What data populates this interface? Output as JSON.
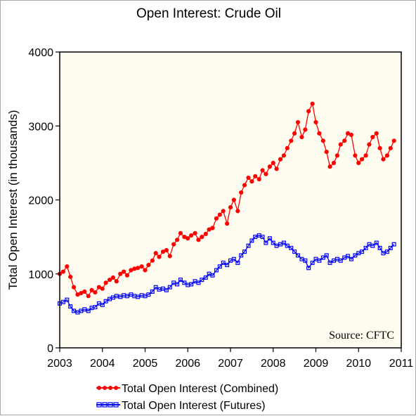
{
  "chart_data": {
    "type": "line",
    "title": "Open Interest: Crude Oil",
    "xlabel": "",
    "ylabel": "Total Open Interest (in thousands)",
    "xlim": [
      2003,
      2011
    ],
    "ylim": [
      0,
      4000
    ],
    "xticks": [
      2003,
      2004,
      2005,
      2006,
      2007,
      2008,
      2009,
      2010,
      2011
    ],
    "yticks": [
      0,
      1000,
      2000,
      3000,
      4000
    ],
    "grid": false,
    "legend_position": "bottom",
    "annotation": "Source: CFTC",
    "background_color": "#fffdf0",
    "series": [
      {
        "name": "Total Open Interest (Combined)",
        "color": "#ff0000",
        "marker": "filled-circle",
        "x": [
          2003.0,
          2003.08,
          2003.17,
          2003.25,
          2003.33,
          2003.42,
          2003.5,
          2003.58,
          2003.67,
          2003.75,
          2003.83,
          2003.92,
          2004.0,
          2004.08,
          2004.17,
          2004.25,
          2004.33,
          2004.42,
          2004.5,
          2004.58,
          2004.67,
          2004.75,
          2004.83,
          2004.92,
          2005.0,
          2005.08,
          2005.17,
          2005.25,
          2005.33,
          2005.42,
          2005.5,
          2005.58,
          2005.67,
          2005.75,
          2005.83,
          2005.92,
          2006.0,
          2006.08,
          2006.17,
          2006.25,
          2006.33,
          2006.42,
          2006.5,
          2006.58,
          2006.67,
          2006.75,
          2006.83,
          2006.92,
          2007.0,
          2007.08,
          2007.17,
          2007.25,
          2007.33,
          2007.42,
          2007.5,
          2007.58,
          2007.67,
          2007.75,
          2007.83,
          2007.92,
          2008.0,
          2008.08,
          2008.17,
          2008.25,
          2008.33,
          2008.42,
          2008.5,
          2008.58,
          2008.67,
          2008.75,
          2008.83,
          2008.92,
          2009.0,
          2009.08,
          2009.17,
          2009.25,
          2009.33,
          2009.42,
          2009.5,
          2009.58,
          2009.67,
          2009.75,
          2009.83,
          2009.92,
          2010.0,
          2010.08,
          2010.17,
          2010.25,
          2010.33,
          2010.42,
          2010.5,
          2010.58,
          2010.67,
          2010.75,
          2010.83
        ],
        "y": [
          1000,
          1030,
          1100,
          960,
          820,
          720,
          740,
          760,
          700,
          780,
          750,
          820,
          800,
          880,
          920,
          950,
          900,
          1000,
          1030,
          980,
          1050,
          1070,
          1080,
          1100,
          1050,
          1120,
          1180,
          1280,
          1230,
          1300,
          1320,
          1240,
          1400,
          1460,
          1550,
          1500,
          1480,
          1520,
          1550,
          1460,
          1500,
          1540,
          1600,
          1620,
          1750,
          1800,
          1850,
          1680,
          1900,
          2000,
          1850,
          2100,
          2200,
          2300,
          2250,
          2320,
          2280,
          2400,
          2350,
          2450,
          2500,
          2420,
          2550,
          2600,
          2700,
          2800,
          2900,
          3050,
          2850,
          2950,
          3200,
          3300,
          3050,
          2900,
          2800,
          2650,
          2450,
          2500,
          2600,
          2750,
          2800,
          2900,
          2880,
          2600,
          2500,
          2550,
          2600,
          2750,
          2850,
          2900,
          2700,
          2550,
          2600,
          2700,
          2800
        ]
      },
      {
        "name": "Total Open Interest (Futures)",
        "color": "#0000ff",
        "marker": "open-square",
        "x": [
          2003.0,
          2003.08,
          2003.17,
          2003.25,
          2003.33,
          2003.42,
          2003.5,
          2003.58,
          2003.67,
          2003.75,
          2003.83,
          2003.92,
          2004.0,
          2004.08,
          2004.17,
          2004.25,
          2004.33,
          2004.42,
          2004.5,
          2004.58,
          2004.67,
          2004.75,
          2004.83,
          2004.92,
          2005.0,
          2005.08,
          2005.17,
          2005.25,
          2005.33,
          2005.42,
          2005.5,
          2005.58,
          2005.67,
          2005.75,
          2005.83,
          2005.92,
          2006.0,
          2006.08,
          2006.17,
          2006.25,
          2006.33,
          2006.42,
          2006.5,
          2006.58,
          2006.67,
          2006.75,
          2006.83,
          2006.92,
          2007.0,
          2007.08,
          2007.17,
          2007.25,
          2007.33,
          2007.42,
          2007.5,
          2007.58,
          2007.67,
          2007.75,
          2007.83,
          2007.92,
          2008.0,
          2008.08,
          2008.17,
          2008.25,
          2008.33,
          2008.42,
          2008.5,
          2008.58,
          2008.67,
          2008.75,
          2008.83,
          2008.92,
          2009.0,
          2009.08,
          2009.17,
          2009.25,
          2009.33,
          2009.42,
          2009.5,
          2009.58,
          2009.67,
          2009.75,
          2009.83,
          2009.92,
          2010.0,
          2010.08,
          2010.17,
          2010.25,
          2010.33,
          2010.42,
          2010.5,
          2010.58,
          2010.67,
          2010.75,
          2010.83
        ],
        "y": [
          600,
          620,
          650,
          560,
          500,
          480,
          500,
          520,
          500,
          540,
          550,
          600,
          580,
          630,
          660,
          680,
          700,
          690,
          710,
          700,
          720,
          700,
          690,
          710,
          700,
          720,
          760,
          820,
          790,
          800,
          780,
          820,
          880,
          860,
          920,
          880,
          850,
          860,
          900,
          880,
          920,
          950,
          1000,
          980,
          1050,
          1100,
          1150,
          1120,
          1180,
          1200,
          1150,
          1250,
          1300,
          1380,
          1450,
          1500,
          1520,
          1500,
          1420,
          1480,
          1420,
          1380,
          1400,
          1420,
          1380,
          1350,
          1300,
          1250,
          1200,
          1180,
          1080,
          1150,
          1200,
          1180,
          1220,
          1250,
          1150,
          1180,
          1200,
          1180,
          1220,
          1240,
          1200,
          1250,
          1280,
          1300,
          1350,
          1400,
          1380,
          1420,
          1350,
          1280,
          1300,
          1350,
          1400
        ]
      }
    ]
  }
}
